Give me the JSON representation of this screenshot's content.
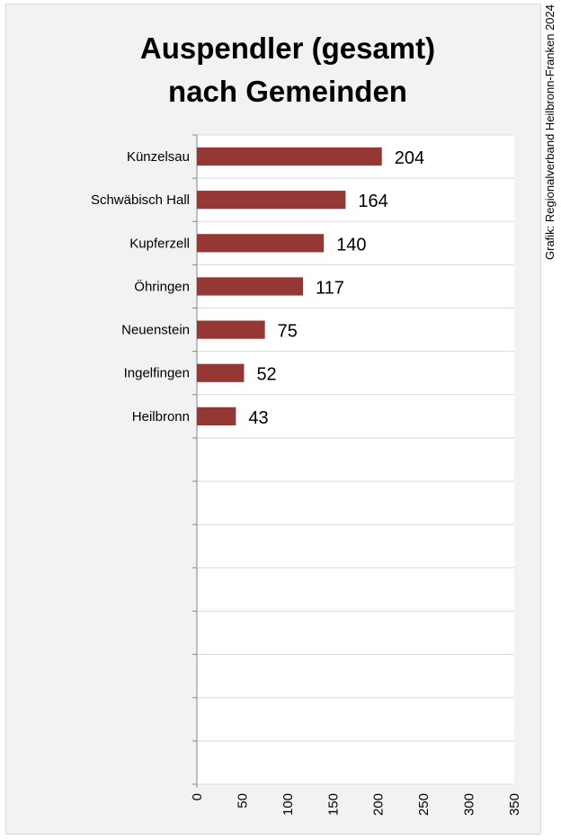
{
  "chart_data": {
    "type": "bar",
    "orientation": "horizontal",
    "title": [
      "Auspendler (gesamt)",
      "nach Gemeinden"
    ],
    "source": "Grafik: Regionalverband Heilbronn-Franken 2024",
    "categories": [
      "Künzelsau",
      "Schwäbisch Hall",
      "Kupferzell",
      "Öhringen",
      "Neuenstein",
      "Ingelfingen",
      "Heilbronn"
    ],
    "values": [
      204,
      164,
      140,
      117,
      75,
      52,
      43
    ],
    "xlim": [
      0,
      350
    ],
    "xticks": [
      0,
      50,
      100,
      150,
      200,
      250,
      300,
      350
    ],
    "category_slots": 15,
    "grid": true,
    "bar_color": "#953735",
    "data_labels": true
  }
}
